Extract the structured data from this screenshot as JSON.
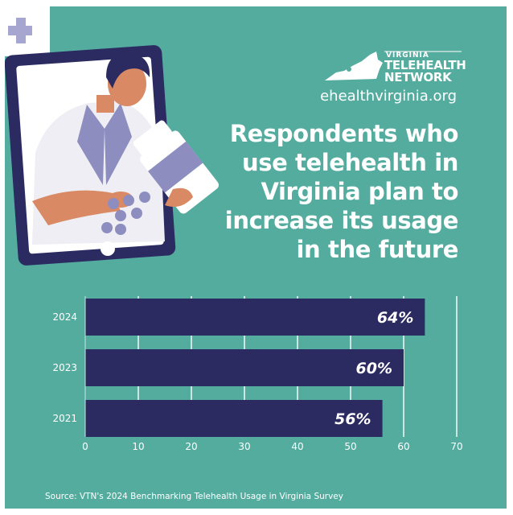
{
  "brand": {
    "name_top": "VIRGINIA",
    "name_line1": "TELEHEALTH",
    "name_line2": "NETWORK",
    "website": "ehealthvirginia.org"
  },
  "headline": [
    "Respondents who",
    "use telehealth in",
    "Virginia plan to",
    "increase its usage",
    "in the future"
  ],
  "source": "Source: VTN's 2024 Benchmarking Telehealth Usage in Virginia Survey",
  "colors": {
    "background": "#54ac9f",
    "bar": "#2b2b62",
    "text": "#ffffff"
  },
  "chart_data": {
    "type": "bar",
    "orientation": "horizontal",
    "categories": [
      "2024",
      "2023",
      "2021"
    ],
    "values": [
      64,
      60,
      56
    ],
    "value_labels": [
      "64%",
      "60%",
      "56%"
    ],
    "xlim": [
      0,
      70
    ],
    "x_ticks": [
      "0",
      "10",
      "20",
      "30",
      "40",
      "50",
      "60",
      "70"
    ],
    "grid": true
  }
}
